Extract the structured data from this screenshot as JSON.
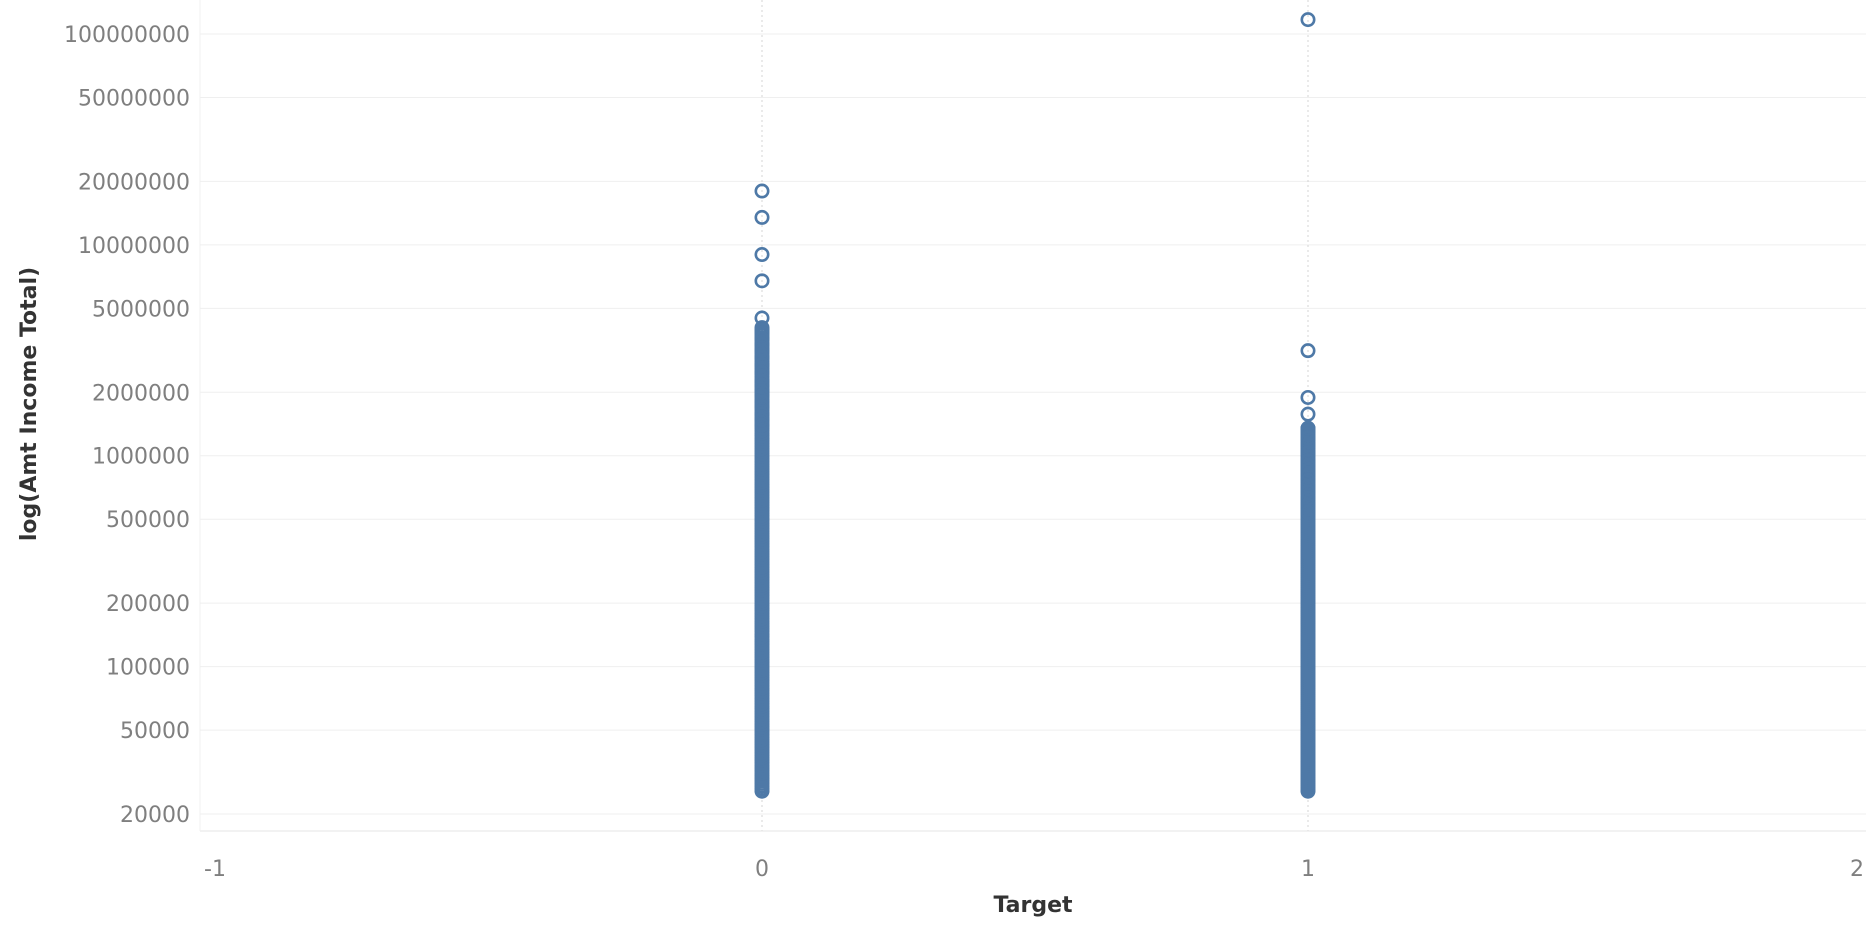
{
  "chart_data": {
    "type": "scatter",
    "title": "",
    "xlabel": "Target",
    "ylabel": "log(Amt Income Total)",
    "x_ticks": [
      "-1",
      "0",
      "1",
      "2"
    ],
    "y_ticks": [
      "100000000",
      "50000000",
      "20000000",
      "10000000",
      "5000000",
      "2000000",
      "1000000",
      "500000",
      "200000",
      "100000",
      "50000",
      "20000"
    ],
    "xlim": [
      -1,
      2
    ],
    "ylim": [
      18500,
      115000000
    ],
    "y_scale": "log",
    "grid": true,
    "marker": "hollow-circle",
    "colors": {
      "marker": "#4e79a7",
      "grid": "#efefef",
      "tick": "#7f7f7f",
      "title": "#333333"
    },
    "series": [
      {
        "x": 0,
        "outliers": [
          18000000,
          13500000,
          9000000,
          6750000,
          4500000
        ],
        "dense_range": [
          25650,
          4050000
        ],
        "upper_points": [
          3950000,
          3825000,
          3600000,
          3375000,
          3150000,
          2925000,
          2700000,
          2475000,
          2250000,
          2160000,
          2025000,
          1935000,
          1800000,
          1710000,
          1575000,
          1485000,
          1395000
        ]
      },
      {
        "x": 1,
        "outliers": [
          117000000,
          3150000,
          1890000,
          1575000
        ],
        "dense_range": [
          25650,
          1350000
        ],
        "upper_points": [
          1350000,
          1305000,
          1215000,
          1125000,
          1035000,
          945000,
          900000,
          855000,
          810000,
          765000,
          720000,
          675000,
          630000,
          585000,
          540000
        ]
      }
    ]
  }
}
